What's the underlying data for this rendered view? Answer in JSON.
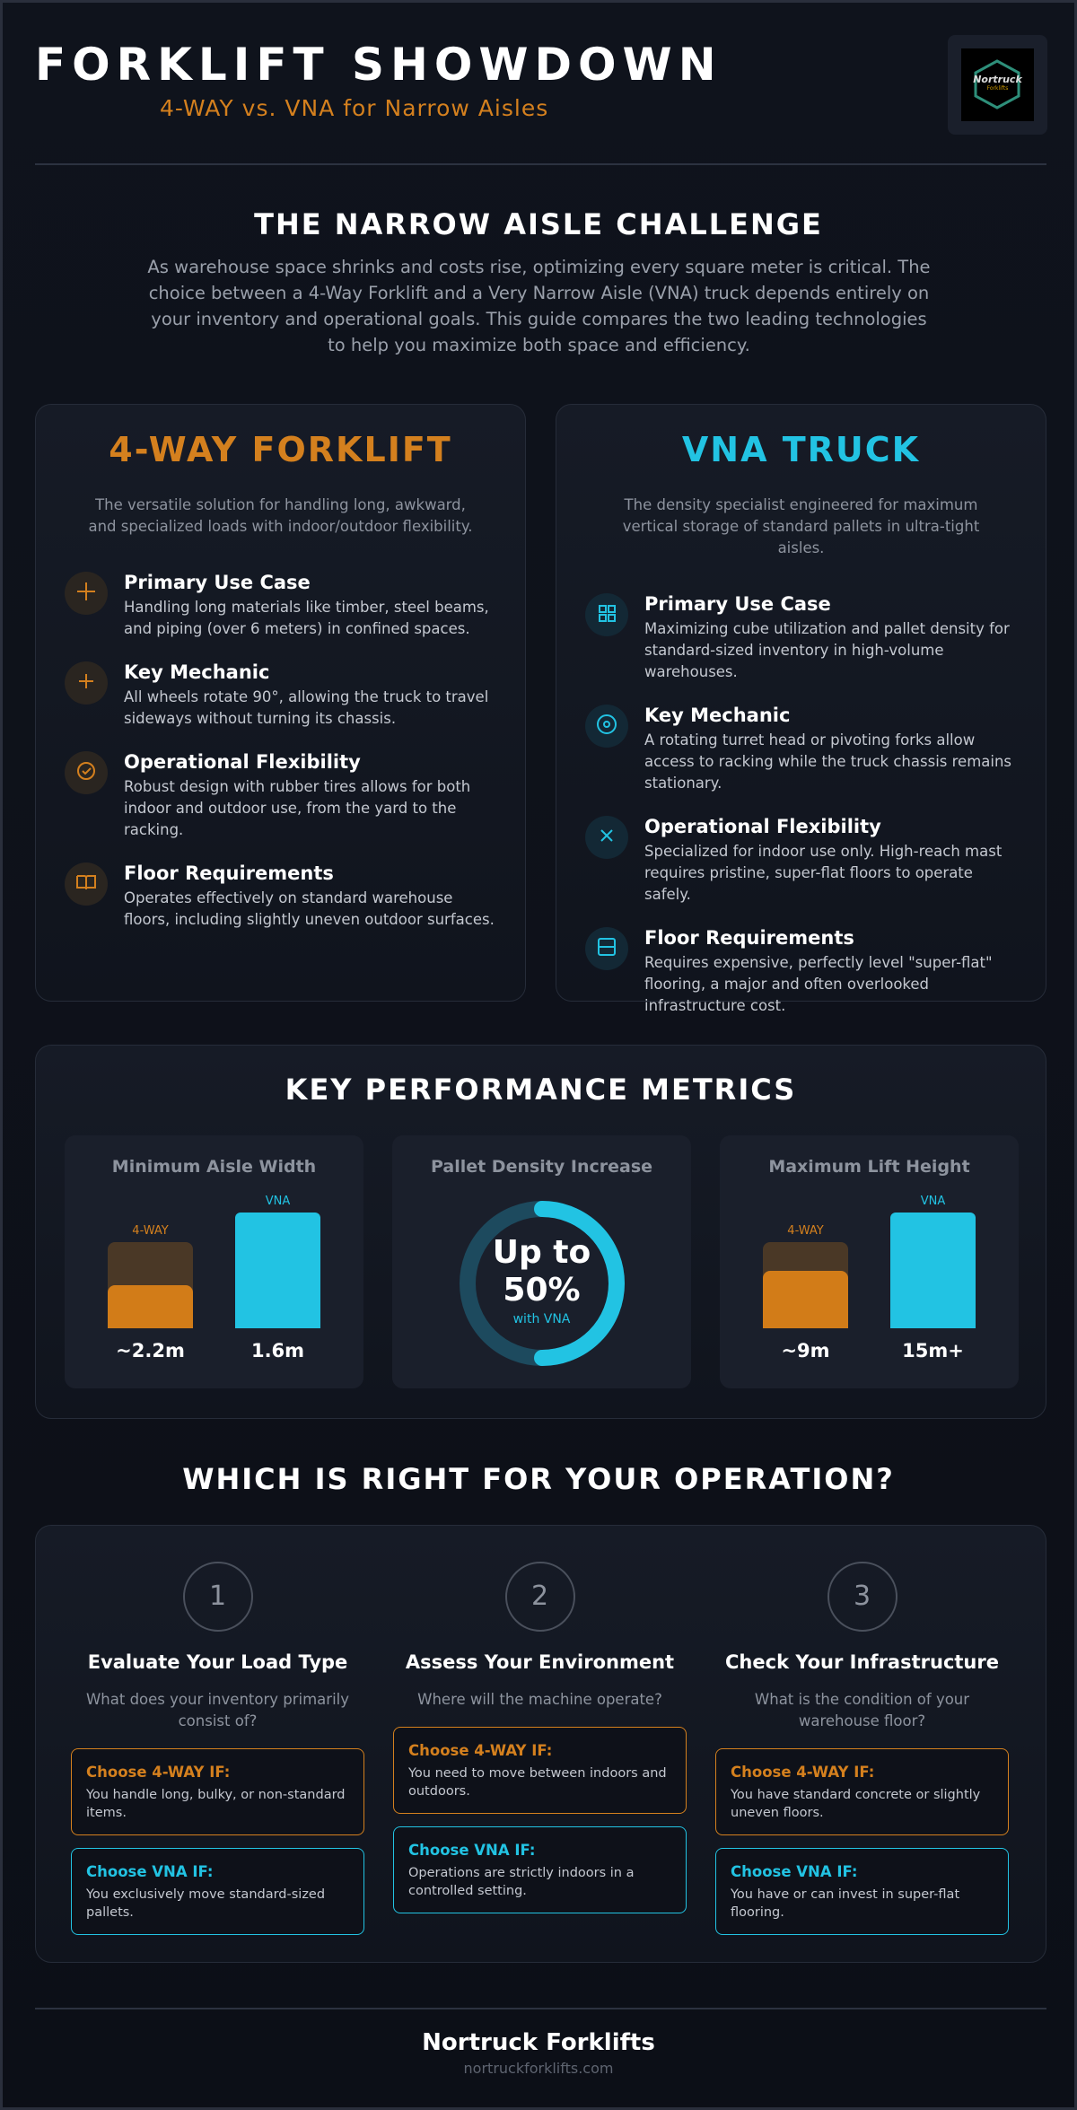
{
  "header": {
    "title": "FORKLIFT SHOWDOWN",
    "subtitle": "4-WAY vs. VNA for Narrow Aisles",
    "logo": [
      "Nortruck",
      "Forklifts"
    ]
  },
  "intro": {
    "title": "THE NARROW AISLE CHALLENGE",
    "text": "As warehouse space shrinks and costs rise, optimizing every square meter is critical. The choice between a 4-Way Forklift and a Very Narrow Aisle (VNA) truck depends entirely on your inventory and operational goals. This guide compares the two leading technologies to help you maximize both space and efficiency."
  },
  "machines": [
    {
      "title": "4-WAY FORKLIFT",
      "description": "The versatile solution for handling long, awkward, and specialized loads with indoor/outdoor flexibility.",
      "features": [
        {
          "title": "Primary Use Case",
          "text": "Handling long materials like timber, steel beams, and piping (over 6 meters) in confined spaces."
        },
        {
          "title": "Key Mechanic",
          "text": "All wheels rotate 90°, allowing the truck to travel sideways without turning its chassis."
        },
        {
          "title": "Operational Flexibility",
          "text": "Robust design with rubber tires allows for both indoor and outdoor use, from the yard to the racking."
        },
        {
          "title": "Floor Requirements",
          "text": "Operates effectively on standard warehouse floors, including slightly uneven outdoor surfaces."
        }
      ]
    },
    {
      "title": "VNA TRUCK",
      "description": "The density specialist engineered for maximum vertical storage of standard pallets in ultra-tight aisles.",
      "features": [
        {
          "title": "Primary Use Case",
          "text": "Maximizing cube utilization and pallet density for standard-sized inventory in high-volume warehouses."
        },
        {
          "title": "Key Mechanic",
          "text": "A rotating turret head or pivoting forks allow access to racking while the truck chassis remains stationary."
        },
        {
          "title": "Operational Flexibility",
          "text": "Specialized for indoor use only. High-reach mast requires pristine, super-flat floors to operate safely."
        },
        {
          "title": "Floor Requirements",
          "text": "Requires expensive, perfectly level \"super-flat\" flooring, a major and often overlooked infrastructure cost."
        }
      ]
    }
  ],
  "metrics": {
    "title": "KEY PERFORMANCE METRICS",
    "cards": [
      {
        "title": "Minimum Aisle Width",
        "labels": [
          "4-WAY",
          "VNA"
        ],
        "values": [
          "~2.2m",
          "1.6m"
        ]
      },
      {
        "title": "Pallet Density Increase",
        "big": [
          "Up to",
          "50%"
        ],
        "sub": "with VNA"
      },
      {
        "title": "Maximum Lift Height",
        "labels": [
          "4-WAY",
          "VNA"
        ],
        "values": [
          "~9m",
          "15m+"
        ]
      }
    ]
  },
  "decision": {
    "title": "WHICH IS RIGHT FOR YOUR OPERATION?",
    "steps": [
      {
        "number": "1",
        "title": "Evaluate Your Load Type",
        "question": "What does your inventory primarily consist of?",
        "options": [
          {
            "label": "Choose 4-WAY IF:",
            "text": "You handle long, bulky, or non-standard items."
          },
          {
            "label": "Choose VNA IF:",
            "text": "You exclusively move standard-sized pallets."
          }
        ]
      },
      {
        "number": "2",
        "title": "Assess Your Environment",
        "question": "Where will the machine operate?",
        "options": [
          {
            "label": "Choose 4-WAY IF:",
            "text": "You need to move between indoors and outdoors."
          },
          {
            "label": "Choose VNA IF:",
            "text": "Operations are strictly indoors in a controlled setting."
          }
        ]
      },
      {
        "number": "3",
        "title": "Check Your Infrastructure",
        "question": "What is the condition of your warehouse floor?",
        "options": [
          {
            "label": "Choose 4-WAY IF:",
            "text": "You have standard concrete or slightly uneven floors."
          },
          {
            "label": "Choose VNA IF:",
            "text": "You have or can invest in super-flat flooring."
          }
        ]
      }
    ]
  },
  "footer": {
    "name": "Nortruck Forklifts",
    "url": "nortruckforklifts.com"
  }
}
